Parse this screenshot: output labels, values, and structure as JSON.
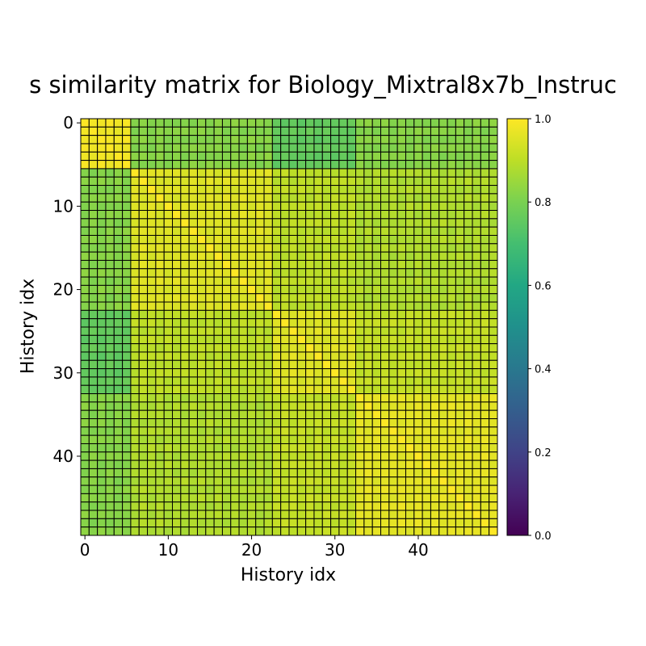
{
  "chart_data": {
    "type": "heatmap",
    "title": "s similarity matrix for Biology_Mixtral8x7b_Instruc",
    "xlabel": "History idx",
    "ylabel": "History idx",
    "n": 50,
    "x_ticks": [
      0,
      10,
      20,
      30,
      40
    ],
    "y_ticks": [
      0,
      10,
      20,
      30,
      40
    ],
    "colorbar": {
      "cmap": "viridis",
      "vmin": 0.0,
      "vmax": 1.0,
      "ticks": [
        "0.0",
        "0.2",
        "0.4",
        "0.6",
        "0.8",
        "1.0"
      ]
    },
    "blocks": [
      {
        "start": 0,
        "end": 5,
        "within": 0.98
      },
      {
        "start": 6,
        "end": 22,
        "within": 0.95
      },
      {
        "start": 23,
        "end": 32,
        "within": 0.95
      },
      {
        "start": 33,
        "end": 49,
        "within": 0.96
      }
    ],
    "between_blocks": [
      [
        1.0,
        0.82,
        0.76,
        0.82
      ],
      [
        0.82,
        1.0,
        0.9,
        0.88
      ],
      [
        0.76,
        0.9,
        1.0,
        0.91
      ],
      [
        0.82,
        0.88,
        0.91,
        1.0
      ]
    ],
    "diagonal": 1.0,
    "cell_edge_color": "#000000",
    "grid": false
  }
}
